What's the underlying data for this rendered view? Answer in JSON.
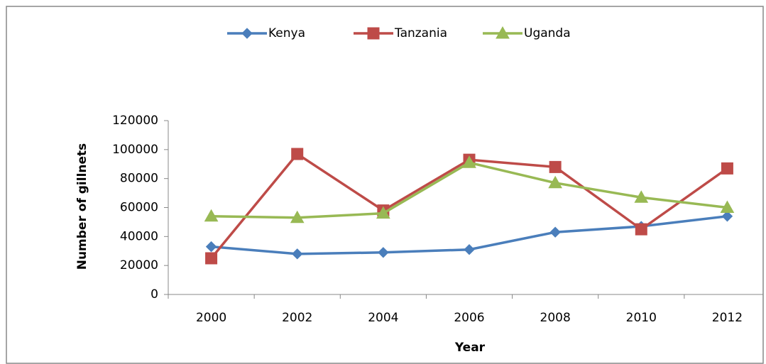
{
  "chart_data": {
    "type": "line",
    "categories": [
      "2000",
      "2002",
      "2004",
      "2006",
      "2008",
      "2010",
      "2012"
    ],
    "series": [
      {
        "name": "Kenya",
        "color": "#4a7ebb",
        "marker": "diamond",
        "values": [
          33000,
          28000,
          29000,
          31000,
          43000,
          47000,
          54000
        ]
      },
      {
        "name": "Tanzania",
        "color": "#be4b48",
        "marker": "square",
        "values": [
          25000,
          97000,
          58000,
          93000,
          88000,
          45000,
          87000
        ]
      },
      {
        "name": "Uganda",
        "color": "#98b954",
        "marker": "triangle",
        "values": [
          54000,
          53000,
          56000,
          91000,
          77000,
          67000,
          60000
        ]
      }
    ],
    "ylim": [
      0,
      120000
    ],
    "yticks": [
      0,
      20000,
      40000,
      60000,
      80000,
      100000,
      120000
    ],
    "y_label": "Number of gillnets",
    "x_label": "Year",
    "legend": "top"
  }
}
